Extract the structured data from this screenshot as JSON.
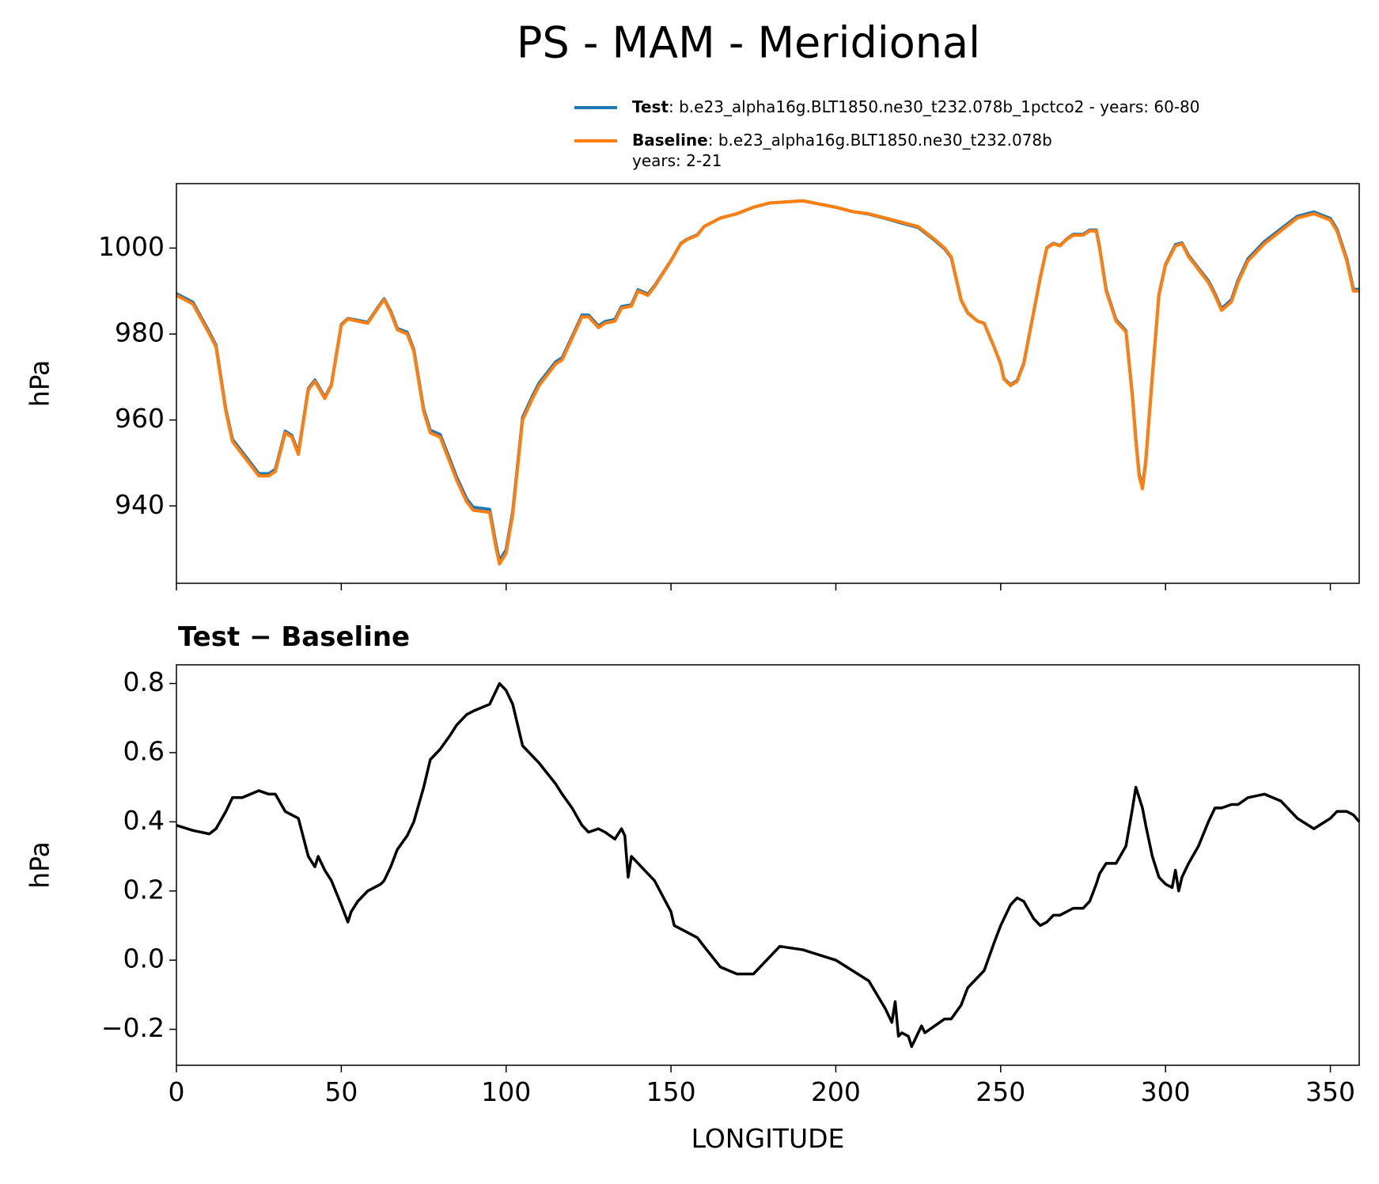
{
  "title": "PS - MAM - Meridional",
  "chart_data": [
    {
      "type": "line",
      "ylabel": "hPa",
      "xlim": [
        0,
        358.75
      ],
      "ylim": [
        922,
        1015
      ],
      "xticks": [
        0,
        50,
        100,
        150,
        200,
        250,
        300,
        350
      ],
      "yticks": [
        940,
        960,
        980,
        1000
      ],
      "x": [
        0,
        5,
        10,
        12,
        15,
        17,
        20,
        25,
        28,
        30,
        33,
        35,
        37,
        40,
        42,
        45,
        47,
        50,
        52,
        55,
        58,
        62,
        63,
        65,
        67,
        70,
        72,
        75,
        77,
        80,
        83,
        85,
        88,
        90,
        95,
        97,
        98,
        100,
        102,
        105,
        108,
        110,
        115,
        117,
        120,
        123,
        125,
        128,
        130,
        133,
        135,
        138,
        140,
        143,
        145,
        150,
        153,
        155,
        158,
        160,
        165,
        170,
        175,
        180,
        190,
        200,
        205,
        210,
        215,
        220,
        225,
        230,
        233,
        235,
        238,
        240,
        243,
        245,
        248,
        250,
        251,
        253,
        255,
        257,
        260,
        262,
        264,
        266,
        268,
        270,
        272,
        275,
        277,
        279,
        280,
        282,
        285,
        288,
        290,
        291,
        292,
        293,
        294,
        296,
        298,
        300,
        303,
        305,
        307,
        310,
        313,
        315,
        317,
        320,
        322,
        325,
        330,
        335,
        340,
        345,
        350,
        352,
        355,
        357,
        358.75
      ],
      "series": [
        {
          "name": "Test",
          "color": "#1f77b4",
          "legend_text": [
            ": b.e23_alpha16g.BLT1850.ne30_t232.078b_1pctco2 - years: 60-80"
          ],
          "values": [
            989.4,
            987.4,
            980.4,
            977.4,
            962.4,
            955.5,
            952.5,
            947.5,
            947.5,
            948.5,
            957.4,
            956.4,
            952.4,
            967.3,
            969.3,
            965.3,
            968.2,
            982.2,
            983.6,
            983.2,
            982.7,
            987.2,
            988.2,
            985.3,
            981.3,
            980.4,
            976.4,
            962.5,
            957.6,
            956.6,
            950.7,
            946.7,
            941.7,
            939.7,
            939.2,
            930.8,
            927.3,
            929.8,
            938.7,
            960.6,
            965.6,
            968.6,
            973.5,
            974.5,
            979.4,
            984.4,
            984.4,
            981.9,
            982.9,
            983.4,
            986.4,
            986.8,
            990.3,
            989.3,
            991.2,
            997.1,
            1001.1,
            1002.1,
            1003.1,
            1005,
            1007,
            1008,
            1009.5,
            1010.5,
            1011,
            1009.5,
            1008.5,
            1007.9,
            1006.9,
            1005.8,
            1004.8,
            1001.8,
            999.8,
            997.8,
            987.9,
            984.9,
            983,
            982.5,
            977,
            973.1,
            969.6,
            968.2,
            969.2,
            973.2,
            985.1,
            993.1,
            1000.1,
            1001.1,
            1000.6,
            1002.1,
            1003.2,
            1003.2,
            1004.2,
            1004.2,
            1000.3,
            990.3,
            983.3,
            980.8,
            965.4,
            955.5,
            947.5,
            944.4,
            950.4,
            970.3,
            989.2,
            996.2,
            1000.8,
            1001.2,
            998.3,
            995.3,
            992.4,
            989.4,
            985.9,
            988,
            992.5,
            997.5,
            1001.5,
            1004.5,
            1007.4,
            1008.4,
            1006.9,
            1004.4,
            997.4,
            990.4,
            990.4
          ]
        },
        {
          "name": "Baseline",
          "color": "#ff7f0e",
          "legend_text": [
            ": b.e23_alpha16g.BLT1850.ne30_t232.078b",
            "years: 2-21"
          ],
          "values": [
            989,
            987,
            980,
            977,
            962,
            955,
            952,
            947,
            947,
            948,
            957,
            956,
            952,
            967,
            969,
            965,
            968,
            982,
            983.5,
            983,
            982.5,
            987,
            988,
            985,
            981,
            980,
            976,
            962,
            957,
            956,
            950,
            946,
            941,
            939,
            938.5,
            930,
            926.5,
            929,
            938,
            960,
            965,
            968,
            973,
            974,
            979,
            984,
            984,
            981.5,
            982.5,
            983,
            986,
            986.5,
            990,
            989,
            991,
            997,
            1001,
            1002,
            1003,
            1005,
            1007,
            1008,
            1009.5,
            1010.5,
            1011,
            1009.5,
            1008.5,
            1008,
            1007,
            1006,
            1005,
            1002,
            1000,
            998,
            988,
            985,
            983,
            982.5,
            977,
            973,
            969.5,
            968,
            969,
            973,
            985,
            993,
            1000,
            1001,
            1000.5,
            1002,
            1003,
            1003,
            1004,
            1004,
            1000,
            990,
            983,
            980.5,
            965,
            955,
            947,
            944,
            950,
            970,
            989,
            996,
            1000.5,
            1001,
            998,
            995,
            992,
            989,
            985.5,
            987.5,
            992,
            997,
            1001,
            1004,
            1007,
            1008,
            1006.5,
            1004,
            997,
            990,
            990
          ]
        }
      ]
    },
    {
      "type": "line",
      "title": "Test − Baseline",
      "ylabel": "hPa",
      "xlabel": "LONGITUDE",
      "xlim": [
        0,
        358.75
      ],
      "ylim": [
        -0.304,
        0.854
      ],
      "xticks": [
        0,
        50,
        100,
        150,
        200,
        250,
        300,
        350
      ],
      "yticks": [
        {
          "value": -0.2,
          "label": "−0.2"
        },
        {
          "value": 0,
          "label": "0.0"
        },
        0.2,
        0.4,
        0.6,
        0.8
      ],
      "x": [
        0,
        5,
        10,
        12,
        15,
        17,
        20,
        25,
        28,
        30,
        33,
        35,
        37,
        40,
        42,
        43,
        45,
        47,
        50,
        52,
        53,
        55,
        58,
        62,
        63,
        65,
        67,
        70,
        72,
        75,
        77,
        80,
        83,
        85,
        88,
        90,
        95,
        97,
        98,
        100,
        102,
        105,
        108,
        110,
        115,
        117,
        120,
        123,
        125,
        128,
        130,
        133,
        135,
        136,
        137,
        138,
        140,
        143,
        145,
        150,
        151,
        153,
        155,
        158,
        160,
        165,
        170,
        175,
        180,
        183,
        190,
        200,
        205,
        210,
        215,
        217,
        218,
        219,
        220,
        222,
        223,
        225,
        226,
        227,
        230,
        233,
        235,
        238,
        240,
        243,
        245,
        248,
        250,
        253,
        255,
        257,
        260,
        262,
        264,
        266,
        268,
        270,
        272,
        275,
        277,
        279,
        280,
        282,
        285,
        288,
        290,
        291,
        292,
        293,
        294,
        296,
        298,
        300,
        302,
        303,
        304,
        305,
        307,
        310,
        313,
        315,
        317,
        320,
        322,
        325,
        330,
        335,
        340,
        345,
        350,
        352,
        355,
        357,
        358.75
      ],
      "series": [
        {
          "color": "#000000",
          "values": [
            0.39,
            0.375,
            0.365,
            0.38,
            0.43,
            0.47,
            0.47,
            0.49,
            0.48,
            0.48,
            0.43,
            0.42,
            0.41,
            0.3,
            0.27,
            0.3,
            0.26,
            0.23,
            0.16,
            0.11,
            0.14,
            0.17,
            0.2,
            0.22,
            0.23,
            0.27,
            0.32,
            0.36,
            0.4,
            0.5,
            0.58,
            0.61,
            0.65,
            0.68,
            0.71,
            0.72,
            0.74,
            0.78,
            0.8,
            0.78,
            0.74,
            0.62,
            0.59,
            0.57,
            0.51,
            0.48,
            0.44,
            0.39,
            0.37,
            0.38,
            0.37,
            0.35,
            0.38,
            0.36,
            0.24,
            0.3,
            0.28,
            0.25,
            0.23,
            0.14,
            0.1,
            0.09,
            0.08,
            0.065,
            0.04,
            -0.02,
            -0.04,
            -0.04,
            0.01,
            0.04,
            0.03,
            0,
            -0.03,
            -0.06,
            -0.14,
            -0.18,
            -0.12,
            -0.22,
            -0.21,
            -0.22,
            -0.25,
            -0.21,
            -0.19,
            -0.21,
            -0.19,
            -0.17,
            -0.17,
            -0.13,
            -0.08,
            -0.05,
            -0.03,
            0.05,
            0.1,
            0.16,
            0.18,
            0.17,
            0.12,
            0.1,
            0.11,
            0.13,
            0.13,
            0.14,
            0.15,
            0.15,
            0.17,
            0.22,
            0.25,
            0.28,
            0.28,
            0.33,
            0.44,
            0.5,
            0.47,
            0.44,
            0.39,
            0.3,
            0.24,
            0.22,
            0.21,
            0.26,
            0.2,
            0.24,
            0.28,
            0.33,
            0.4,
            0.44,
            0.44,
            0.45,
            0.45,
            0.47,
            0.48,
            0.46,
            0.41,
            0.38,
            0.41,
            0.43,
            0.43,
            0.42,
            0.4
          ]
        }
      ]
    }
  ]
}
